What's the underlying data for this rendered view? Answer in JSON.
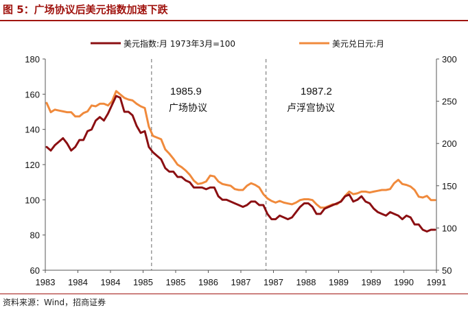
{
  "figure": {
    "title": "图 5：广场协议后美元指数加速下跌",
    "source": "资料来源：Wind，招商证券"
  },
  "chart_data": {
    "type": "line",
    "xlabel": "",
    "ylabel_left": "",
    "ylabel_right": "",
    "ylim_left": [
      60,
      180
    ],
    "yticks_left": [
      60,
      80,
      100,
      120,
      140,
      160,
      180
    ],
    "ylim_right": [
      50,
      300
    ],
    "yticks_right": [
      50,
      100,
      150,
      200,
      250,
      300
    ],
    "x_tick_labels": [
      "1983",
      "1984",
      "1984",
      "1985",
      "1985",
      "1986",
      "1987",
      "1987",
      "1988",
      "1989",
      "1989",
      "1990",
      "1991"
    ],
    "grid": false,
    "legend_position": "top",
    "colors": {
      "dxy": "#8b0f12",
      "usdjpy": "#f08a3c",
      "accent": "#a0140f"
    },
    "series": [
      {
        "name": "美元指数:月 1973年3月=100",
        "axis": "left",
        "values": [
          130,
          128,
          131,
          133,
          135,
          132,
          128,
          130,
          134,
          134,
          139,
          140,
          145,
          147,
          145,
          149,
          154,
          159,
          158,
          150,
          150,
          148,
          142,
          138,
          139,
          130,
          127,
          125,
          123,
          118,
          116,
          116,
          113,
          113,
          111,
          110,
          107,
          107,
          107,
          106,
          107,
          107,
          102,
          100,
          100,
          99,
          98,
          97,
          96,
          97,
          99,
          99,
          97,
          97,
          92,
          89,
          89,
          91,
          90,
          89,
          90,
          93,
          96,
          98,
          98,
          96,
          92,
          92,
          95,
          96,
          97,
          98,
          99,
          102,
          103,
          99,
          100,
          102,
          99,
          98,
          95,
          93,
          92,
          91,
          93,
          92,
          91,
          89,
          91,
          90,
          86,
          86,
          83,
          82,
          83,
          83
        ]
      },
      {
        "name": "美元兑日元:月",
        "axis": "right",
        "values": [
          248,
          237,
          240,
          239,
          238,
          237,
          237,
          232,
          232,
          236,
          238,
          245,
          244,
          247,
          247,
          245,
          250,
          262,
          258,
          254,
          252,
          251,
          247,
          244,
          242,
          220,
          209,
          207,
          205,
          193,
          188,
          182,
          175,
          172,
          168,
          163,
          156,
          152,
          153,
          155,
          162,
          161,
          155,
          152,
          151,
          150,
          146,
          145,
          145,
          150,
          153,
          151,
          148,
          140,
          135,
          132,
          130,
          132,
          130,
          129,
          128,
          130,
          133,
          134,
          134,
          133,
          128,
          124,
          124,
          126,
          128,
          128,
          132,
          138,
          143,
          140,
          141,
          143,
          143,
          142,
          143,
          144,
          145,
          145,
          146,
          153,
          157,
          152,
          151,
          149,
          145,
          137,
          136,
          138,
          133,
          133
        ]
      }
    ],
    "annotations": [
      {
        "number": "1985.9",
        "text": "广场协议"
      },
      {
        "number": "1987.2",
        "text": "卢浮宫协议"
      }
    ]
  }
}
